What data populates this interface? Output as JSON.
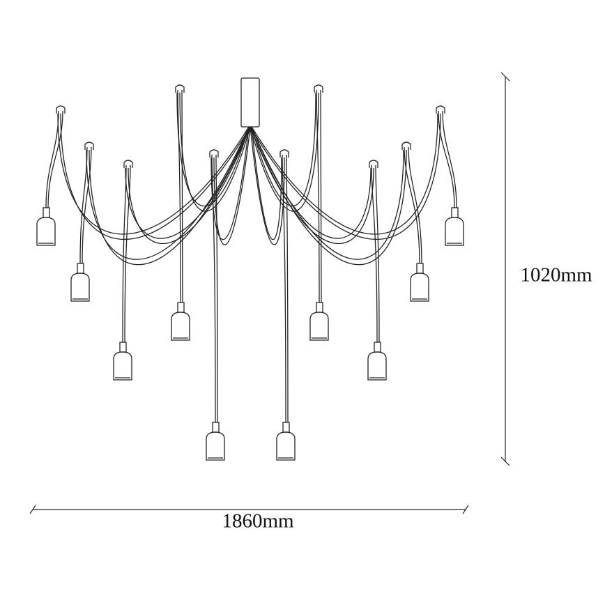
{
  "dimensions": {
    "height": "1020mm",
    "width": "1860mm"
  }
}
